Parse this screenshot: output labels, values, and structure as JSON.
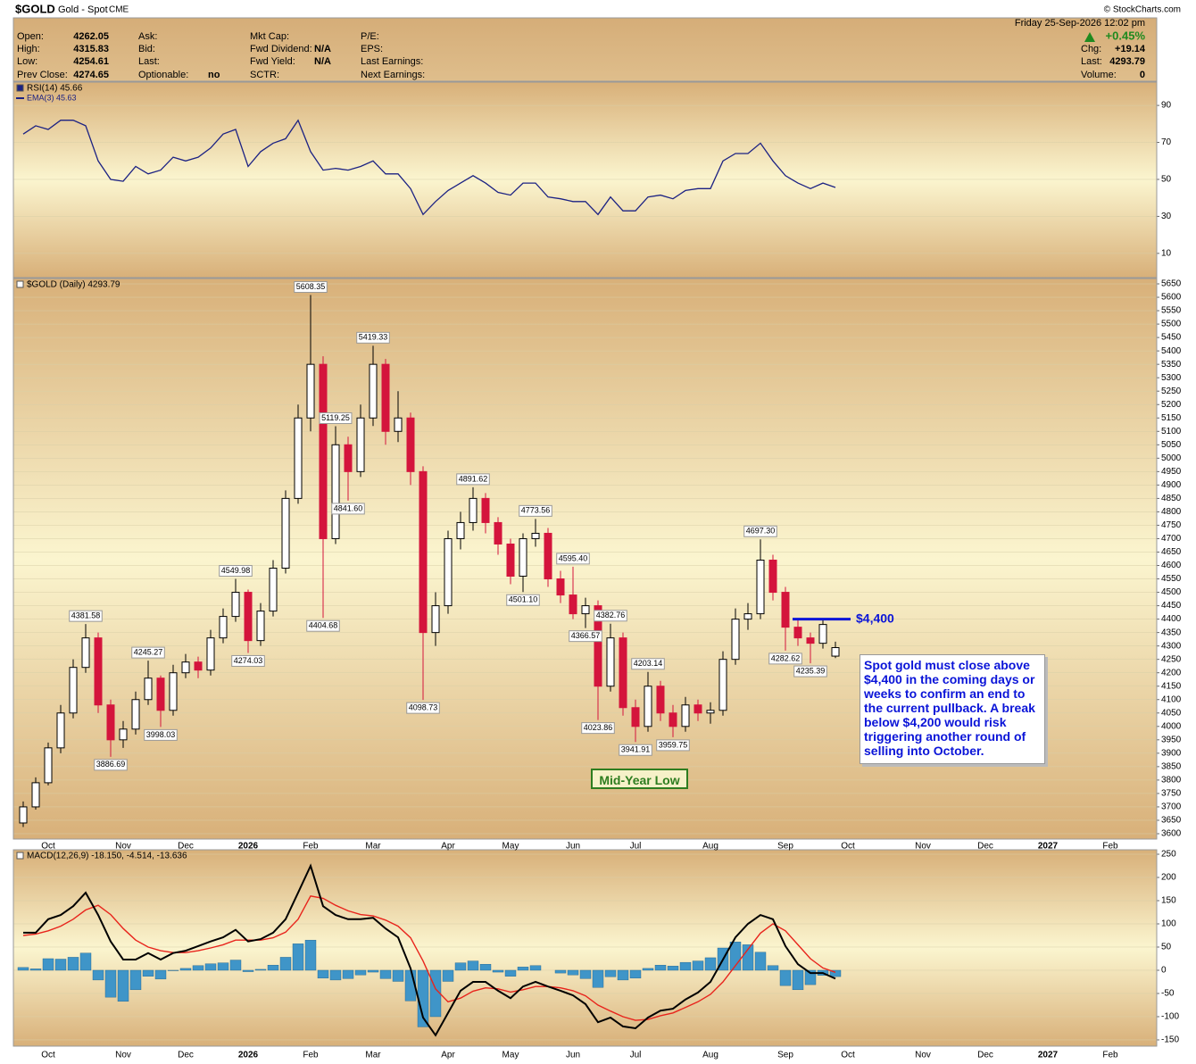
{
  "header": {
    "symbol": "$GOLD",
    "name": "Gold - Spot",
    "exchange": "CME",
    "date": "Friday  25-Sep-2026 12:02 pm",
    "change_pct": "+0.45%",
    "copyright": "© StockCharts.com",
    "columns": [
      [
        {
          "label": "Open:",
          "value": 4262.05
        },
        {
          "label": "High:",
          "value": 4315.83
        },
        {
          "label": "Low:",
          "value": 4254.61
        },
        {
          "label": "Prev Close:",
          "value": 4274.65
        }
      ],
      [
        {
          "label": "Ask:"
        },
        {
          "label": "Bid:"
        },
        {
          "label": "Last:"
        },
        {
          "label": "Optionable:",
          "value": "no"
        }
      ],
      [
        {
          "label": "Mkt Cap:"
        },
        {
          "label": "Fwd Dividend:",
          "value": "N/A"
        },
        {
          "label": "Fwd Yield:",
          "value": "N/A"
        },
        {
          "label": "SCTR:"
        }
      ],
      [
        {
          "label": "P/E:"
        },
        {
          "label": "EPS:"
        },
        {
          "label": "Last Earnings:"
        },
        {
          "label": "Next Earnings:"
        }
      ]
    ],
    "quote": [
      {
        "label": "Chg:",
        "value": "+19.14"
      },
      {
        "label": "Last:",
        "value": 4293.79
      },
      {
        "label": "Volume:",
        "value": 0
      }
    ]
  },
  "chart_data": [
    {
      "type": "line",
      "legend": "RSI(14) 45.66",
      "ema_legend": "EMA(3) 45.63",
      "color": "#1c2283",
      "grid": true,
      "ylim": [
        -3.1,
        102.6
      ],
      "yticks": [
        10,
        30,
        50,
        70,
        90
      ],
      "values": [
        74.5,
        79,
        77,
        82,
        82,
        79,
        60,
        50,
        49,
        57,
        53,
        55,
        62,
        60,
        62,
        67,
        74.5,
        77,
        57,
        65,
        69.6,
        72,
        82,
        65,
        55,
        56,
        55,
        57,
        60,
        53,
        53,
        45,
        31,
        38,
        44,
        48,
        52,
        48,
        43,
        41.5,
        48,
        48,
        40.5,
        39.5,
        38,
        38,
        31,
        40.5,
        33,
        33,
        40.5,
        41.5,
        39.5,
        44,
        45,
        45,
        60,
        64,
        64,
        69.6,
        60,
        52,
        48,
        45,
        48,
        45.66,
        null,
        null,
        null,
        null,
        null,
        null,
        null,
        null,
        null,
        null,
        null,
        null,
        null,
        null,
        null,
        null,
        null,
        null,
        null,
        null,
        null,
        null,
        null,
        null,
        null
      ]
    },
    {
      "type": "candlestick",
      "legend": "$GOLD (Daily) 4293.79",
      "up_color": "#000000",
      "down_color": "#d4143c",
      "grid": true,
      "categories": [
        null,
        null,
        "Oct",
        null,
        null,
        null,
        null,
        null,
        "Nov",
        null,
        null,
        null,
        null,
        "Dec",
        null,
        null,
        null,
        null,
        "2026",
        null,
        null,
        null,
        null,
        "Feb",
        null,
        null,
        null,
        null,
        "Mar",
        null,
        null,
        null,
        null,
        null,
        "Apr",
        null,
        null,
        null,
        null,
        "May",
        null,
        null,
        null,
        null,
        "Jun",
        null,
        null,
        null,
        null,
        "Jul",
        null,
        null,
        null,
        null,
        null,
        "Aug",
        null,
        null,
        null,
        null,
        null,
        "Sep",
        null,
        null,
        null,
        null,
        "Oct",
        null,
        null,
        null,
        null,
        null,
        "Nov",
        null,
        null,
        null,
        null,
        "Dec",
        null,
        null,
        null,
        null,
        "2027",
        null,
        null,
        null,
        null,
        "Feb",
        null,
        null,
        null
      ],
      "open": [
        3640,
        3700,
        3790,
        3920,
        4050,
        4220,
        4330,
        4080,
        3950,
        3990,
        4100,
        4180,
        4060,
        4200,
        4240,
        4210,
        4330,
        4410,
        4500,
        4320,
        4430,
        4590,
        4850,
        5150,
        5350,
        4700,
        5050,
        4950,
        5150,
        5350,
        5100,
        5150,
        4950,
        4350,
        4450,
        4700,
        4760,
        4850,
        4760,
        4680,
        4560,
        4700,
        4720,
        4550,
        4490,
        4420,
        4450,
        4150,
        4330,
        4070,
        4000,
        4150,
        4050,
        4000,
        4080,
        4050,
        4060,
        4250,
        4400,
        4420,
        4620,
        4500,
        4370,
        4330,
        4310,
        4262.05,
        null,
        null,
        null,
        null,
        null,
        null,
        null,
        null,
        null,
        null,
        null,
        null,
        null,
        null,
        null,
        null,
        null,
        null,
        null,
        null,
        null,
        null,
        null,
        null,
        null
      ],
      "high": [
        3720,
        3810,
        3940,
        4080,
        4250,
        4381.58,
        4350,
        4100,
        4020,
        4130,
        4245.27,
        4190,
        4230,
        4270,
        4260,
        4360,
        4440,
        4549.98,
        4510,
        4460,
        4620,
        4880,
        5200,
        5608.35,
        5380,
        5119.25,
        5080,
        5200,
        5419.33,
        5370,
        5250,
        5170,
        4970,
        4500,
        4730,
        4800,
        4891.62,
        4870,
        4780,
        4700,
        4720,
        4773.56,
        4740,
        4580,
        4595.4,
        4480,
        4470,
        4382.76,
        4350,
        4100,
        4203.14,
        4170,
        4080,
        4110,
        4100,
        4090,
        4280,
        4440,
        4460,
        4697.3,
        4640,
        4520,
        4400,
        4350,
        4400,
        4315.83,
        null,
        null,
        null,
        null,
        null,
        null,
        null,
        null,
        null,
        null,
        null,
        null,
        null,
        null,
        null,
        null,
        null,
        null,
        null,
        null,
        null,
        null,
        null,
        null,
        null
      ],
      "low": [
        3625,
        3690,
        3780,
        3900,
        4030,
        4200,
        4050,
        3886.69,
        3920,
        3970,
        4080,
        3998.03,
        4040,
        4180,
        4180,
        4190,
        4310,
        4390,
        4274.03,
        4300,
        4410,
        4570,
        4830,
        5100,
        4404.68,
        4680,
        4841.6,
        4930,
        5120,
        5050,
        5060,
        4900,
        4098.73,
        4300,
        4420,
        4660,
        4730,
        4720,
        4640,
        4530,
        4501.1,
        4670,
        4520,
        4460,
        4400,
        4366.57,
        4023.86,
        4130,
        4040,
        3941.91,
        3980,
        4020,
        3959.75,
        3980,
        4020,
        4010,
        4040,
        4230,
        4360,
        4400,
        4470,
        4282.62,
        4300,
        4235.39,
        4290,
        4254.61,
        null,
        null,
        null,
        null,
        null,
        null,
        null,
        null,
        null,
        null,
        null,
        null,
        null,
        null,
        null,
        null,
        null,
        null,
        null,
        null,
        null,
        null,
        null,
        null,
        null
      ],
      "close": [
        3700,
        3790,
        3920,
        4050,
        4220,
        4330,
        4080,
        3950,
        3990,
        4100,
        4180,
        4060,
        4200,
        4240,
        4210,
        4330,
        4410,
        4500,
        4320,
        4430,
        4590,
        4850,
        5150,
        5350,
        4700,
        5050,
        4950,
        5150,
        5350,
        5100,
        5150,
        4950,
        4350,
        4450,
        4700,
        4760,
        4850,
        4760,
        4680,
        4560,
        4700,
        4720,
        4550,
        4490,
        4420,
        4450,
        4150,
        4330,
        4070,
        4000,
        4150,
        4050,
        4000,
        4080,
        4050,
        4060,
        4250,
        4400,
        4420,
        4620,
        4500,
        4370,
        4330,
        4310,
        4380,
        4293.79,
        null,
        null,
        null,
        null,
        null,
        null,
        null,
        null,
        null,
        null,
        null,
        null,
        null,
        null,
        null,
        null,
        null,
        null,
        null,
        null,
        null,
        null,
        null,
        null,
        null
      ],
      "extreme_labels": [
        null,
        null,
        null,
        null,
        null,
        "4381.58",
        null,
        "3886.69",
        null,
        null,
        "4245.27",
        "3998.03",
        null,
        null,
        null,
        null,
        null,
        "4549.98",
        "4274.03",
        null,
        null,
        null,
        null,
        "5608.35",
        "4404.68",
        "5119.25",
        "4841.60",
        null,
        "5419.33",
        null,
        null,
        null,
        "4098.73",
        null,
        null,
        null,
        "4891.62",
        null,
        null,
        null,
        "4501.10",
        "4773.56",
        null,
        null,
        "4595.40",
        "4366.57",
        "4023.86",
        "4382.76",
        null,
        "3941.91",
        "4203.14",
        null,
        "3959.75",
        null,
        null,
        null,
        null,
        null,
        null,
        "4697.30",
        null,
        "4282.62",
        null,
        "4235.39",
        null,
        null,
        null,
        null,
        null,
        null,
        null,
        null,
        null,
        null,
        null,
        null,
        null,
        null,
        null,
        null,
        null,
        null,
        null,
        null,
        null,
        null,
        null,
        null,
        null,
        null,
        null
      ],
      "ylim": [
        3580,
        5670
      ],
      "yticks": [
        3600,
        3650,
        3700,
        3750,
        3800,
        3850,
        3900,
        3950,
        4000,
        4050,
        4100,
        4150,
        4200,
        4250,
        4300,
        4350,
        4400,
        4450,
        4500,
        4550,
        4600,
        4650,
        4700,
        4750,
        4800,
        4850,
        4900,
        4950,
        5000,
        5050,
        5100,
        5150,
        5200,
        5250,
        5300,
        5350,
        5400,
        5450,
        5500,
        5550,
        5600,
        5650
      ],
      "level": {
        "value": 4400,
        "label": "$4,400",
        "color": "#0a14d8"
      },
      "callout": "Spot gold must close above $4,400 in the coming days or weeks to confirm an end to the current pullback. A break below $4,200 would risk triggering another round of selling into October.",
      "marker_label": "Mid-Year Low"
    },
    {
      "type": "macd",
      "legend": "MACD(12,26,9) -18.150, -4.514, -13.636",
      "grid": true,
      "ylim": [
        -163.5,
        259.6
      ],
      "yticks": [
        -150,
        -100,
        -50,
        0,
        50,
        100,
        150,
        200,
        250
      ],
      "series": [
        {
          "style": "bars",
          "color": "#3f95c8",
          "values": [
            6,
            3,
            25,
            24,
            28,
            37,
            -21,
            -58,
            -67,
            -42,
            -13,
            -19,
            -1,
            4,
            10,
            14,
            16,
            22,
            -3,
            2,
            11,
            28,
            57,
            65,
            -17,
            -21,
            -18,
            -10,
            -4,
            -18,
            -24,
            -66,
            -122,
            -100,
            -24,
            16,
            20,
            13,
            -4,
            -13,
            7,
            10,
            0,
            -6,
            -10,
            -18,
            -37,
            -14,
            -21,
            -17,
            4,
            11,
            9,
            17,
            20,
            27,
            48,
            61,
            55,
            39,
            10,
            -33,
            -42,
            -31,
            -11,
            -13.636,
            null,
            null,
            null,
            null,
            null,
            null,
            null,
            null,
            null,
            null,
            null,
            null,
            null,
            null,
            null,
            null,
            null,
            null,
            null,
            null,
            null,
            null,
            null,
            null,
            null
          ]
        },
        {
          "style": "line",
          "color": "#e8241c",
          "values": [
            75,
            78,
            85,
            95,
            110,
            130,
            140,
            120,
            90,
            65,
            50,
            42,
            38,
            38,
            42,
            48,
            55,
            65,
            65,
            65,
            70,
            82,
            110,
            160,
            155,
            140,
            128,
            120,
            117,
            108,
            95,
            70,
            20,
            -40,
            -68,
            -60,
            -45,
            -38,
            -40,
            -47,
            -42,
            -35,
            -35,
            -38,
            -44,
            -55,
            -75,
            -88,
            -100,
            -108,
            -106,
            -98,
            -92,
            -80,
            -68,
            -52,
            -25,
            10,
            45,
            80,
            100,
            85,
            55,
            25,
            5,
            -4.514,
            null,
            null,
            null,
            null,
            null,
            null,
            null,
            null,
            null,
            null,
            null,
            null,
            null,
            null,
            null,
            null,
            null,
            null,
            null,
            null,
            null,
            null,
            null,
            null,
            null
          ]
        },
        {
          "style": "line",
          "color": "#000000",
          "values": [
            81,
            81,
            110,
            119,
            138,
            167,
            119,
            62,
            23,
            23,
            37,
            23,
            37,
            42,
            52,
            62,
            71,
            87,
            62,
            67,
            81,
            110,
            167,
            225,
            138,
            119,
            110,
            110,
            113,
            90,
            71,
            4,
            -102,
            -140,
            -92,
            -44,
            -25,
            -25,
            -44,
            -60,
            -35,
            -25,
            -35,
            -44,
            -54,
            -73,
            -112,
            -102,
            -121,
            -125,
            -102,
            -87,
            -83,
            -63,
            -48,
            -25,
            23,
            71,
            100,
            119,
            110,
            52,
            13,
            -6,
            -6,
            -18.15,
            null,
            null,
            null,
            null,
            null,
            null,
            null,
            null,
            null,
            null,
            null,
            null,
            null,
            null,
            null,
            null,
            null,
            null,
            null,
            null,
            null,
            null,
            null,
            null,
            null
          ]
        }
      ]
    }
  ]
}
